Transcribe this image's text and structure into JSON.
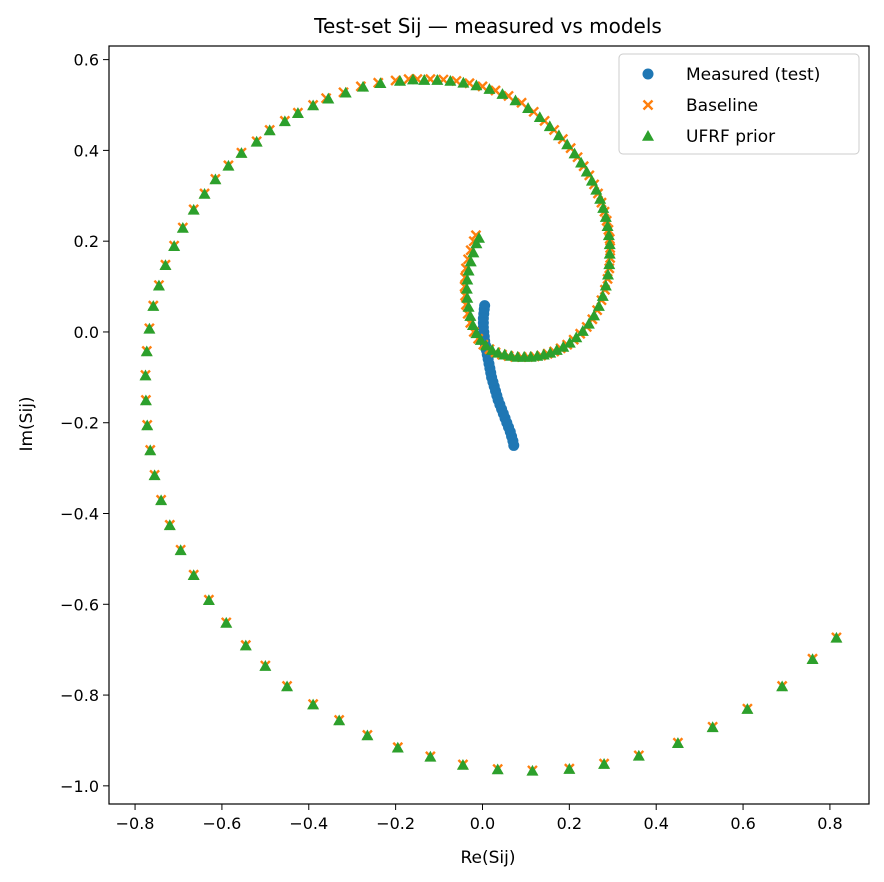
{
  "chart_data": {
    "type": "scatter",
    "title": "Test-set Sij — measured vs models",
    "xlabel": "Re(Sij)",
    "ylabel": "Im(Sij)",
    "xlim": [
      -0.86,
      0.89
    ],
    "ylim": [
      -1.04,
      0.63
    ],
    "xticks": [
      -0.8,
      -0.6,
      -0.4,
      -0.2,
      0.0,
      0.2,
      0.4,
      0.6,
      0.8
    ],
    "xtick_labels": [
      "−0.8",
      "−0.6",
      "−0.4",
      "−0.2",
      "0.0",
      "0.2",
      "0.4",
      "0.6",
      "0.8"
    ],
    "yticks": [
      0.6,
      0.4,
      0.2,
      0.0,
      -0.2,
      -0.4,
      -0.6,
      -0.8,
      -1.0
    ],
    "ytick_labels": [
      "0.6",
      "0.4",
      "0.2",
      "0.0",
      "−0.2",
      "−0.4",
      "−0.6",
      "−0.8",
      "−1.0"
    ],
    "grid": false,
    "legend_position": "top-right",
    "series": [
      {
        "name": "Measured (test)",
        "marker": "circle",
        "color": "#1f77b4",
        "points": [
          [
            0.005,
            0.058
          ],
          [
            0.004,
            0.05
          ],
          [
            0.003,
            0.04
          ],
          [
            0.002,
            0.03
          ],
          [
            0.002,
            0.02
          ],
          [
            0.002,
            0.01
          ],
          [
            0.003,
            0.0
          ],
          [
            0.004,
            -0.01
          ],
          [
            0.005,
            -0.02
          ],
          [
            0.007,
            -0.03
          ],
          [
            0.009,
            -0.04
          ],
          [
            0.011,
            -0.05
          ],
          [
            0.013,
            -0.06
          ],
          [
            0.015,
            -0.07
          ],
          [
            0.017,
            -0.08
          ],
          [
            0.019,
            -0.09
          ],
          [
            0.021,
            -0.1
          ],
          [
            0.024,
            -0.11
          ],
          [
            0.027,
            -0.12
          ],
          [
            0.03,
            -0.13
          ],
          [
            0.033,
            -0.14
          ],
          [
            0.036,
            -0.15
          ],
          [
            0.04,
            -0.16
          ],
          [
            0.044,
            -0.17
          ],
          [
            0.048,
            -0.18
          ],
          [
            0.052,
            -0.19
          ],
          [
            0.056,
            -0.2
          ],
          [
            0.06,
            -0.21
          ],
          [
            0.064,
            -0.22
          ],
          [
            0.067,
            -0.23
          ],
          [
            0.07,
            -0.24
          ],
          [
            0.072,
            -0.25
          ]
        ]
      },
      {
        "name": "Baseline",
        "marker": "x",
        "color": "#ff7f0e",
        "points": [
          [
            -0.015,
            0.213
          ],
          [
            -0.02,
            0.2
          ],
          [
            -0.027,
            0.18
          ],
          [
            -0.033,
            0.16
          ],
          [
            -0.038,
            0.14
          ],
          [
            -0.04,
            0.12
          ],
          [
            -0.041,
            0.1
          ],
          [
            -0.04,
            0.08
          ],
          [
            -0.038,
            0.06
          ],
          [
            -0.034,
            0.04
          ],
          [
            -0.028,
            0.02
          ],
          [
            -0.02,
            0.0
          ],
          [
            -0.01,
            -0.015
          ],
          [
            0.002,
            -0.028
          ],
          [
            0.016,
            -0.038
          ],
          [
            0.03,
            -0.045
          ],
          [
            0.045,
            -0.05
          ],
          [
            0.06,
            -0.053
          ],
          [
            0.075,
            -0.055
          ],
          [
            0.09,
            -0.055
          ],
          [
            0.105,
            -0.055
          ],
          [
            0.12,
            -0.054
          ],
          [
            0.135,
            -0.052
          ],
          [
            0.15,
            -0.048
          ],
          [
            0.165,
            -0.043
          ],
          [
            0.18,
            -0.036
          ],
          [
            0.195,
            -0.028
          ],
          [
            0.21,
            -0.017
          ],
          [
            0.225,
            -0.004
          ],
          [
            0.24,
            0.011
          ],
          [
            0.253,
            0.028
          ],
          [
            0.264,
            0.048
          ],
          [
            0.274,
            0.07
          ],
          [
            0.282,
            0.093
          ],
          [
            0.288,
            0.117
          ],
          [
            0.292,
            0.14
          ],
          [
            0.294,
            0.163
          ],
          [
            0.294,
            0.185
          ],
          [
            0.293,
            0.205
          ],
          [
            0.29,
            0.225
          ],
          [
            0.286,
            0.245
          ],
          [
            0.281,
            0.265
          ],
          [
            0.274,
            0.285
          ],
          [
            0.266,
            0.305
          ],
          [
            0.257,
            0.325
          ],
          [
            0.246,
            0.345
          ],
          [
            0.233,
            0.365
          ],
          [
            0.219,
            0.385
          ],
          [
            0.203,
            0.405
          ],
          [
            0.185,
            0.425
          ],
          [
            0.165,
            0.445
          ],
          [
            0.143,
            0.465
          ],
          [
            0.118,
            0.485
          ],
          [
            0.09,
            0.505
          ],
          [
            0.06,
            0.52
          ],
          [
            0.03,
            0.532
          ],
          [
            0.0,
            0.541
          ],
          [
            -0.03,
            0.548
          ],
          [
            -0.06,
            0.553
          ],
          [
            -0.09,
            0.556
          ],
          [
            -0.12,
            0.557
          ],
          [
            -0.15,
            0.557
          ],
          [
            -0.17,
            0.557
          ],
          [
            -0.2,
            0.554
          ],
          [
            -0.24,
            0.549
          ],
          [
            -0.28,
            0.541
          ],
          [
            -0.32,
            0.528
          ],
          [
            -0.36,
            0.515
          ],
          [
            -0.39,
            0.5
          ],
          [
            -0.425,
            0.483
          ],
          [
            -0.455,
            0.465
          ],
          [
            -0.49,
            0.445
          ],
          [
            -0.52,
            0.42
          ],
          [
            -0.555,
            0.395
          ],
          [
            -0.585,
            0.367
          ],
          [
            -0.615,
            0.337
          ],
          [
            -0.64,
            0.305
          ],
          [
            -0.665,
            0.27
          ],
          [
            -0.69,
            0.23
          ],
          [
            -0.71,
            0.19
          ],
          [
            -0.73,
            0.148
          ],
          [
            -0.745,
            0.103
          ],
          [
            -0.758,
            0.058
          ],
          [
            -0.767,
            0.008
          ],
          [
            -0.773,
            -0.042
          ],
          [
            -0.776,
            -0.095
          ],
          [
            -0.775,
            -0.15
          ],
          [
            -0.772,
            -0.205
          ],
          [
            -0.765,
            -0.26
          ],
          [
            -0.755,
            -0.315
          ],
          [
            -0.74,
            -0.37
          ],
          [
            -0.72,
            -0.425
          ],
          [
            -0.695,
            -0.48
          ],
          [
            -0.665,
            -0.535
          ],
          [
            -0.63,
            -0.59
          ],
          [
            -0.59,
            -0.64
          ],
          [
            -0.545,
            -0.69
          ],
          [
            -0.5,
            -0.735
          ],
          [
            -0.45,
            -0.78
          ],
          [
            -0.39,
            -0.82
          ],
          [
            -0.33,
            -0.855
          ],
          [
            -0.265,
            -0.888
          ],
          [
            -0.195,
            -0.915
          ],
          [
            -0.12,
            -0.935
          ],
          [
            -0.045,
            -0.953
          ],
          [
            0.035,
            -0.963
          ],
          [
            0.115,
            -0.966
          ],
          [
            0.2,
            -0.962
          ],
          [
            0.28,
            -0.951
          ],
          [
            0.36,
            -0.933
          ],
          [
            0.45,
            -0.905
          ],
          [
            0.53,
            -0.87
          ],
          [
            0.61,
            -0.83
          ],
          [
            0.69,
            -0.78
          ],
          [
            0.76,
            -0.72
          ],
          [
            0.815,
            -0.673
          ]
        ]
      },
      {
        "name": "UFRF prior",
        "marker": "triangle",
        "color": "#2ca02c",
        "points": [
          [
            -0.008,
            0.207
          ],
          [
            -0.014,
            0.195
          ],
          [
            -0.021,
            0.175
          ],
          [
            -0.027,
            0.155
          ],
          [
            -0.032,
            0.135
          ],
          [
            -0.035,
            0.115
          ],
          [
            -0.036,
            0.095
          ],
          [
            -0.035,
            0.075
          ],
          [
            -0.032,
            0.055
          ],
          [
            -0.028,
            0.035
          ],
          [
            -0.022,
            0.015
          ],
          [
            -0.014,
            -0.003
          ],
          [
            -0.004,
            -0.018
          ],
          [
            0.008,
            -0.03
          ],
          [
            0.022,
            -0.04
          ],
          [
            0.036,
            -0.046
          ],
          [
            0.051,
            -0.05
          ],
          [
            0.066,
            -0.053
          ],
          [
            0.081,
            -0.055
          ],
          [
            0.096,
            -0.055
          ],
          [
            0.111,
            -0.055
          ],
          [
            0.126,
            -0.053
          ],
          [
            0.141,
            -0.05
          ],
          [
            0.156,
            -0.046
          ],
          [
            0.171,
            -0.04
          ],
          [
            0.186,
            -0.033
          ],
          [
            0.201,
            -0.024
          ],
          [
            0.216,
            -0.012
          ],
          [
            0.231,
            0.002
          ],
          [
            0.245,
            0.018
          ],
          [
            0.257,
            0.036
          ],
          [
            0.268,
            0.057
          ],
          [
            0.277,
            0.079
          ],
          [
            0.284,
            0.102
          ],
          [
            0.289,
            0.126
          ],
          [
            0.292,
            0.149
          ],
          [
            0.293,
            0.172
          ],
          [
            0.293,
            0.193
          ],
          [
            0.291,
            0.213
          ],
          [
            0.288,
            0.233
          ],
          [
            0.284,
            0.253
          ],
          [
            0.278,
            0.273
          ],
          [
            0.271,
            0.293
          ],
          [
            0.262,
            0.313
          ],
          [
            0.252,
            0.333
          ],
          [
            0.24,
            0.353
          ],
          [
            0.227,
            0.373
          ],
          [
            0.212,
            0.393
          ],
          [
            0.195,
            0.413
          ],
          [
            0.176,
            0.433
          ],
          [
            0.155,
            0.453
          ],
          [
            0.132,
            0.473
          ],
          [
            0.105,
            0.493
          ],
          [
            0.076,
            0.51
          ],
          [
            0.046,
            0.524
          ],
          [
            0.016,
            0.535
          ],
          [
            -0.014,
            0.543
          ],
          [
            -0.044,
            0.549
          ],
          [
            -0.074,
            0.553
          ],
          [
            -0.104,
            0.555
          ],
          [
            -0.134,
            0.555
          ],
          [
            -0.16,
            0.556
          ],
          [
            -0.19,
            0.553
          ],
          [
            -0.235,
            0.548
          ],
          [
            -0.275,
            0.54
          ],
          [
            -0.315,
            0.527
          ],
          [
            -0.355,
            0.514
          ],
          [
            -0.39,
            0.499
          ],
          [
            -0.425,
            0.482
          ],
          [
            -0.455,
            0.464
          ],
          [
            -0.49,
            0.444
          ],
          [
            -0.52,
            0.419
          ],
          [
            -0.555,
            0.394
          ],
          [
            -0.585,
            0.366
          ],
          [
            -0.615,
            0.336
          ],
          [
            -0.64,
            0.304
          ],
          [
            -0.665,
            0.269
          ],
          [
            -0.69,
            0.229
          ],
          [
            -0.71,
            0.189
          ],
          [
            -0.73,
            0.147
          ],
          [
            -0.745,
            0.102
          ],
          [
            -0.758,
            0.057
          ],
          [
            -0.767,
            0.007
          ],
          [
            -0.773,
            -0.043
          ],
          [
            -0.776,
            -0.096
          ],
          [
            -0.775,
            -0.151
          ],
          [
            -0.772,
            -0.206
          ],
          [
            -0.765,
            -0.261
          ],
          [
            -0.755,
            -0.316
          ],
          [
            -0.74,
            -0.371
          ],
          [
            -0.72,
            -0.426
          ],
          [
            -0.695,
            -0.481
          ],
          [
            -0.665,
            -0.536
          ],
          [
            -0.63,
            -0.591
          ],
          [
            -0.59,
            -0.641
          ],
          [
            -0.545,
            -0.691
          ],
          [
            -0.5,
            -0.736
          ],
          [
            -0.45,
            -0.781
          ],
          [
            -0.39,
            -0.821
          ],
          [
            -0.33,
            -0.856
          ],
          [
            -0.265,
            -0.889
          ],
          [
            -0.195,
            -0.916
          ],
          [
            -0.12,
            -0.936
          ],
          [
            -0.045,
            -0.954
          ],
          [
            0.035,
            -0.964
          ],
          [
            0.115,
            -0.967
          ],
          [
            0.2,
            -0.963
          ],
          [
            0.28,
            -0.952
          ],
          [
            0.36,
            -0.934
          ],
          [
            0.45,
            -0.906
          ],
          [
            0.53,
            -0.871
          ],
          [
            0.61,
            -0.831
          ],
          [
            0.69,
            -0.781
          ],
          [
            0.76,
            -0.721
          ],
          [
            0.815,
            -0.674
          ]
        ]
      }
    ]
  }
}
